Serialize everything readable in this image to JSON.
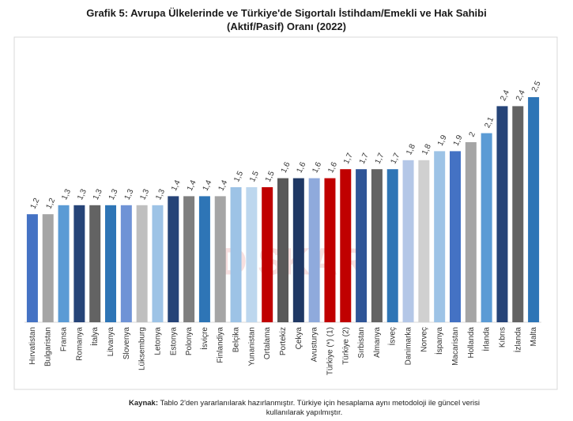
{
  "chart_data": {
    "type": "bar",
    "title": [
      "Grafik 5: Avrupa Ülkelerinde ve Türkiye'de Sigortalı İstihdam/Emekli ve Hak Sahibi",
      "(Aktif/Pasif) Oranı (2022)"
    ],
    "categories": [
      "Hırvatistan",
      "Bulgaristan",
      "Fransa",
      "Romanya",
      "İtalya",
      "Litvanya",
      "Slovenya",
      "Lüksemburg",
      "Letonya",
      "Estonya",
      "Polonya",
      "İsviçre",
      "Finlandiya",
      "Belçika",
      "Yunanistan",
      "Ortalama",
      "Portekiz",
      "Çekya",
      "Avusturya",
      "Türkiye (*) (1)",
      "Türkiye (2)",
      "Sırbistan",
      "Almanya",
      "İsveç",
      "Danimarka",
      "Norveç",
      "İspanya",
      "Macaristan",
      "Hollanda",
      "İrlanda",
      "Kıbrıs",
      "İzlanda",
      "Malta"
    ],
    "values": [
      1.2,
      1.2,
      1.3,
      1.3,
      1.3,
      1.3,
      1.3,
      1.3,
      1.3,
      1.4,
      1.4,
      1.4,
      1.4,
      1.5,
      1.5,
      1.5,
      1.6,
      1.6,
      1.6,
      1.6,
      1.7,
      1.7,
      1.7,
      1.7,
      1.8,
      1.8,
      1.9,
      1.9,
      2,
      2.1,
      2.4,
      2.4,
      2.5
    ],
    "value_labels": [
      "1,2",
      "1,2",
      "1,3",
      "1,3",
      "1,3",
      "1,3",
      "1,3",
      "1,3",
      "1,3",
      "1,4",
      "1,4",
      "1,4",
      "1,4",
      "1,5",
      "1,5",
      "1,5",
      "1,6",
      "1,6",
      "1,6",
      "1,6",
      "1,7",
      "1,7",
      "1,7",
      "1,7",
      "1,8",
      "1,8",
      "1,9",
      "1,9",
      "2",
      "2,1",
      "2,4",
      "2,4",
      "2,5"
    ],
    "colors": [
      "#4472c4",
      "#a5a5a5",
      "#5b9bd5",
      "#264478",
      "#636363",
      "#2e75b6",
      "#6f93d6",
      "#bfbfbf",
      "#9dc3e6",
      "#264478",
      "#7f7f7f",
      "#2e75b6",
      "#a5a5a5",
      "#9dc3e6",
      "#bdd7ee",
      "#c00000",
      "#595959",
      "#1f3864",
      "#8faadc",
      "#c00000",
      "#c00000",
      "#2f5597",
      "#636363",
      "#2e75b6",
      "#b4c7e7",
      "#d0d0d0",
      "#9dc3e6",
      "#4472c4",
      "#a5a5a5",
      "#5b9bd5",
      "#264478",
      "#636363",
      "#2e75b6"
    ],
    "ylim": [
      0,
      3
    ],
    "watermark": "DİSKAR",
    "source_label": "Kaynak:",
    "source": "Tablo 2'den yararlanılarak hazırlanmıştır. Türkiye için hesaplama aynı metodoloji ile güncel verisi kullanılarak yapılmıştır."
  }
}
